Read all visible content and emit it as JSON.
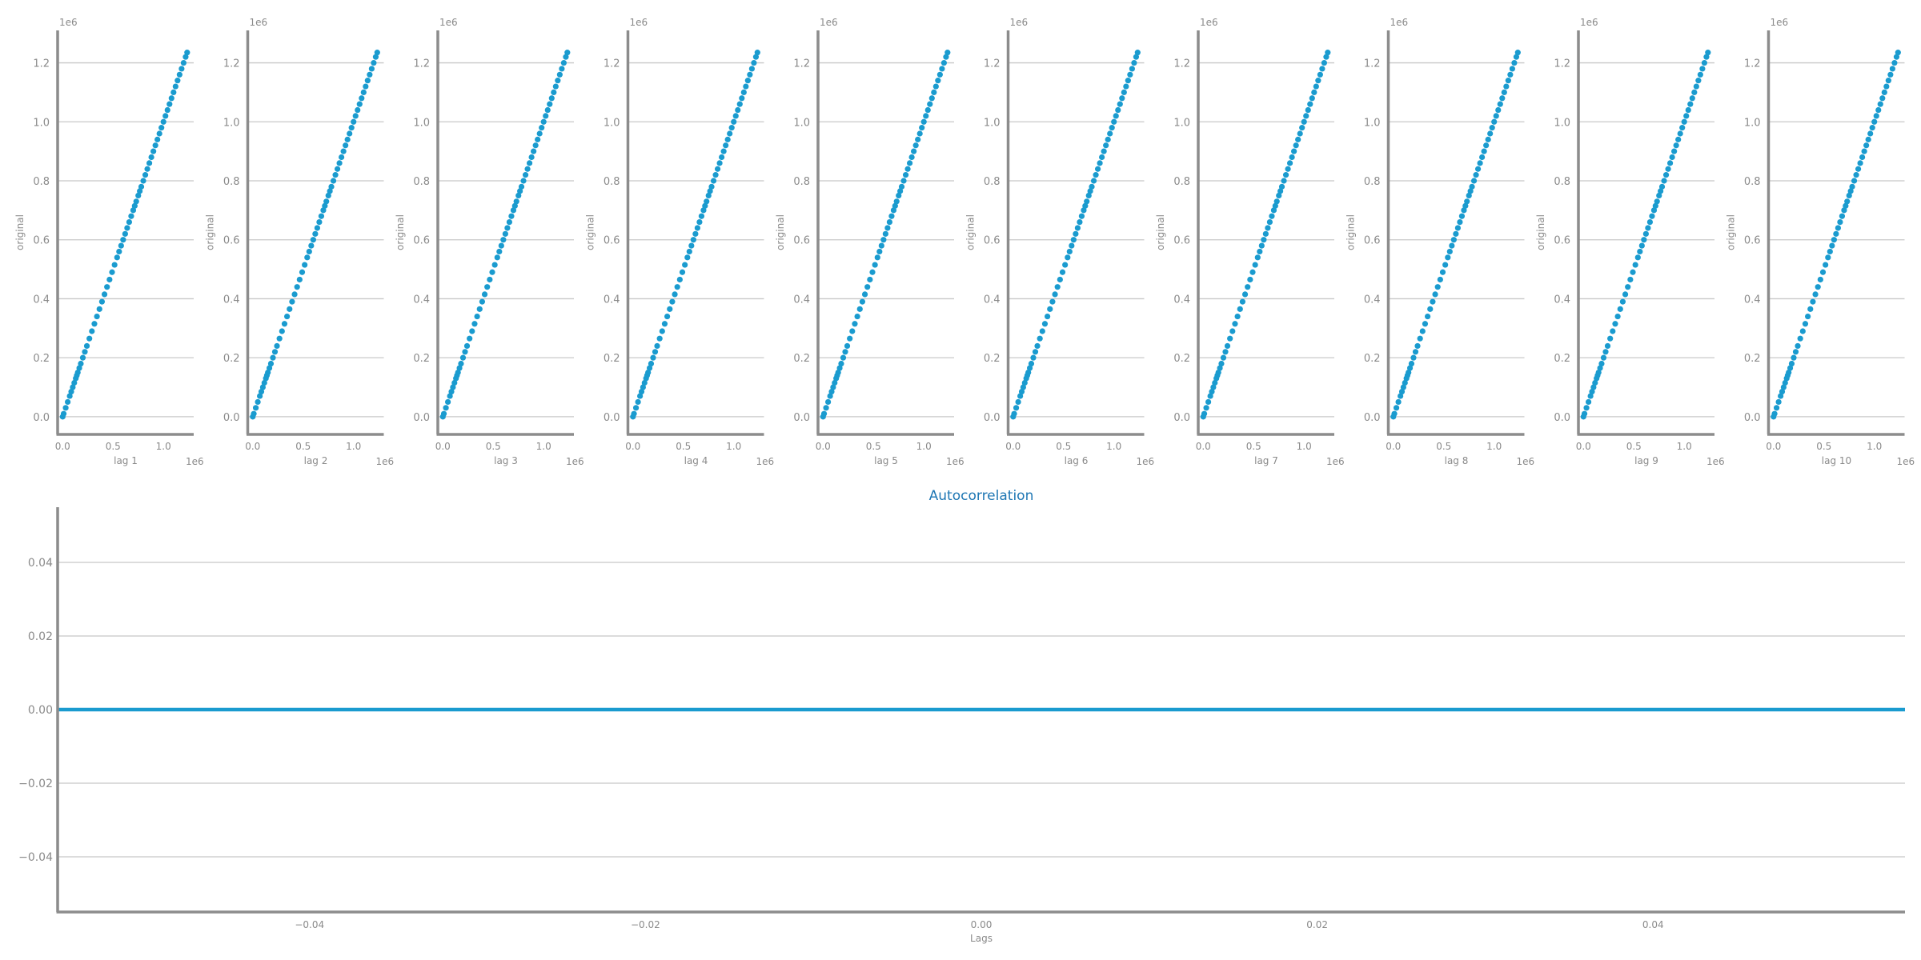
{
  "colors": {
    "series": "#1a9bcf",
    "axis": "#8c8c8c",
    "grid": "#c8c8c8",
    "text": "#8a8a8a",
    "title": "#1f77b4"
  },
  "chart_data": [
    {
      "type": "scatter",
      "panel": "lag-plots",
      "count": 10,
      "xlabels": [
        "lag 1",
        "lag 2",
        "lag 3",
        "lag 4",
        "lag 5",
        "lag 6",
        "lag 7",
        "lag 8",
        "lag 9",
        "lag 10"
      ],
      "ylabel": "original",
      "offset_label": "1e6",
      "xticks": [
        "0.0",
        "0.5",
        "1.0"
      ],
      "yticks": [
        "0.0",
        "0.2",
        "0.4",
        "0.6",
        "0.8",
        "1.0",
        "1.2"
      ],
      "xlim": [
        -0.05,
        1.3
      ],
      "ylim": [
        -0.06,
        1.31
      ],
      "grid": "horizontal",
      "series": [
        {
          "x": [
            0.0,
            0.01,
            0.03,
            0.05,
            0.07,
            0.085,
            0.1,
            0.115,
            0.13,
            0.14,
            0.15,
            0.165,
            0.18,
            0.2,
            0.22,
            0.24,
            0.265,
            0.29,
            0.315,
            0.34,
            0.365,
            0.39,
            0.415,
            0.44,
            0.465,
            0.49,
            0.515,
            0.54,
            0.56,
            0.58,
            0.6,
            0.62,
            0.64,
            0.66,
            0.68,
            0.7,
            0.715,
            0.73,
            0.75,
            0.765,
            0.78,
            0.8,
            0.82,
            0.84,
            0.86,
            0.88,
            0.9,
            0.92,
            0.94,
            0.96,
            0.98,
            1.0,
            1.02,
            1.04,
            1.06,
            1.08,
            1.1,
            1.12,
            1.14,
            1.16,
            1.18,
            1.2,
            1.22,
            1.235
          ],
          "y": [
            0.0,
            0.01,
            0.03,
            0.05,
            0.07,
            0.085,
            0.1,
            0.115,
            0.13,
            0.14,
            0.15,
            0.165,
            0.18,
            0.2,
            0.22,
            0.24,
            0.265,
            0.29,
            0.315,
            0.34,
            0.365,
            0.39,
            0.415,
            0.44,
            0.465,
            0.49,
            0.515,
            0.54,
            0.56,
            0.58,
            0.6,
            0.62,
            0.64,
            0.66,
            0.68,
            0.7,
            0.715,
            0.73,
            0.75,
            0.765,
            0.78,
            0.8,
            0.82,
            0.84,
            0.86,
            0.88,
            0.9,
            0.92,
            0.94,
            0.96,
            0.98,
            1.0,
            1.02,
            1.04,
            1.06,
            1.08,
            1.1,
            1.12,
            1.14,
            1.16,
            1.18,
            1.2,
            1.22,
            1.235
          ]
        }
      ]
    },
    {
      "type": "line",
      "panel": "autocorrelation",
      "title": "Autocorrelation",
      "xlabel": "Lags",
      "xlim": [
        -0.055,
        0.055
      ],
      "ylim": [
        -0.055,
        0.055
      ],
      "xticks": [
        "−0.04",
        "−0.02",
        "0.00",
        "0.02",
        "0.04"
      ],
      "xtick_values": [
        -0.04,
        -0.02,
        0.0,
        0.02,
        0.04
      ],
      "yticks": [
        "−0.04",
        "−0.02",
        "0.00",
        "0.02",
        "0.04"
      ],
      "ytick_values": [
        -0.04,
        -0.02,
        0.0,
        0.02,
        0.04
      ],
      "grid": "horizontal",
      "series": [
        {
          "x": [
            -0.055,
            0.055
          ],
          "y": [
            0.0,
            0.0
          ]
        }
      ]
    }
  ]
}
